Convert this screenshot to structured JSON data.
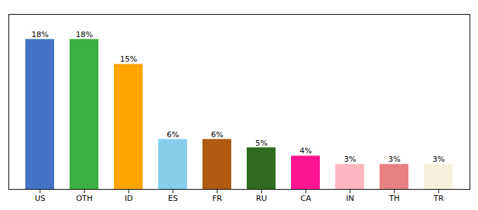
{
  "chart_data": {
    "type": "bar",
    "categories": [
      "US",
      "OTH",
      "ID",
      "ES",
      "FR",
      "RU",
      "CA",
      "IN",
      "TH",
      "TR"
    ],
    "values": [
      18,
      18,
      15,
      6,
      6,
      5,
      4,
      3,
      3,
      3
    ],
    "value_labels": [
      "18%",
      "18%",
      "15%",
      "6%",
      "6%",
      "5%",
      "4%",
      "3%",
      "3%",
      "3%"
    ],
    "data_labels": true,
    "colors": [
      "#4472C4",
      "#3CB043",
      "#FFA500",
      "#87CEEB",
      "#B05A10",
      "#2E6B1E",
      "#FF1493",
      "#FFB6C1",
      "#E88080",
      "#F5F0DC"
    ],
    "ylim": [
      0,
      21
    ],
    "tick_labels": "x",
    "grid": false
  }
}
